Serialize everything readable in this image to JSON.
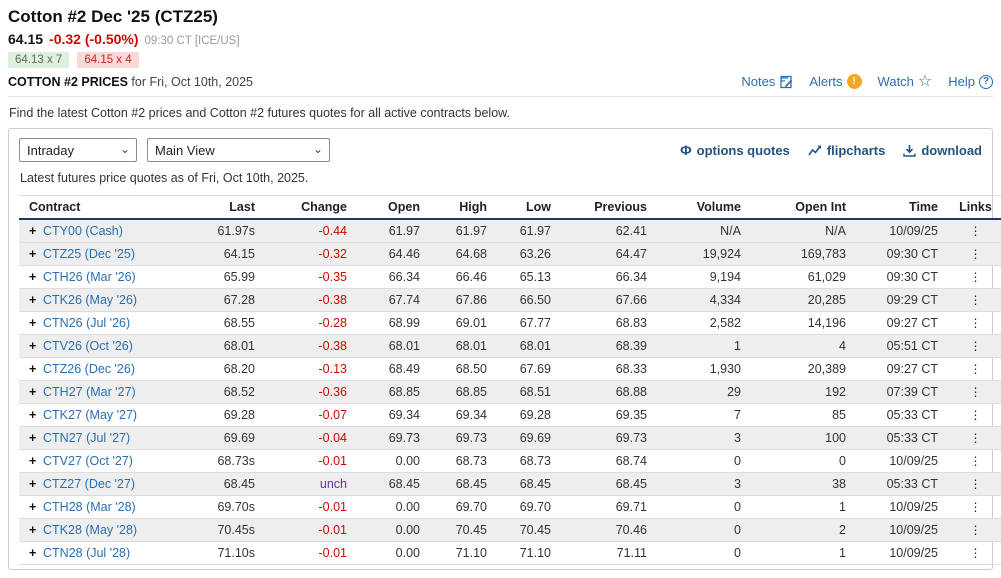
{
  "header": {
    "title": "Cotton #2 Dec '25 (CTZ25)",
    "last_price": "64.15",
    "change": "-0.32 (-0.50%)",
    "quote_time": "09:30 CT [ICE/US]",
    "bid": "64.13 x 7",
    "ask": "64.15 x 4",
    "prices_label": "COTTON #2 PRICES",
    "prices_for": "for Fri, Oct 10th, 2025",
    "notes_label": "Notes",
    "alerts_label": "Alerts",
    "watch_label": "Watch",
    "help_label": "Help"
  },
  "intro_text": "Find the latest Cotton #2 prices and Cotton #2 futures quotes for all active contracts below.",
  "toolbar": {
    "view_select_value": "Intraday",
    "layout_select_value": "Main View",
    "options_quotes_label": "options quotes",
    "flipcharts_label": "flipcharts",
    "download_label": "download"
  },
  "quotes_note": "Latest futures price quotes as of Fri, Oct 10th, 2025.",
  "table": {
    "columns": [
      "Contract",
      "Last",
      "Change",
      "Open",
      "High",
      "Low",
      "Previous",
      "Volume",
      "Open Int",
      "Time",
      "Links"
    ],
    "rows": [
      {
        "contract": "CTY00 (Cash)",
        "last": "61.97s",
        "change": "-0.44",
        "change_type": "down",
        "open": "61.97",
        "high": "61.97",
        "low": "61.97",
        "previous": "62.41",
        "volume": "N/A",
        "open_int": "N/A",
        "time": "10/09/25"
      },
      {
        "contract": "CTZ25 (Dec '25)",
        "last": "64.15",
        "change": "-0.32",
        "change_type": "down",
        "open": "64.46",
        "high": "64.68",
        "low": "63.26",
        "previous": "64.47",
        "volume": "19,924",
        "open_int": "169,783",
        "time": "09:30 CT"
      },
      {
        "contract": "CTH26 (Mar '26)",
        "last": "65.99",
        "change": "-0.35",
        "change_type": "down",
        "open": "66.34",
        "high": "66.46",
        "low": "65.13",
        "previous": "66.34",
        "volume": "9,194",
        "open_int": "61,029",
        "time": "09:30 CT"
      },
      {
        "contract": "CTK26 (May '26)",
        "last": "67.28",
        "change": "-0.38",
        "change_type": "down",
        "open": "67.74",
        "high": "67.86",
        "low": "66.50",
        "previous": "67.66",
        "volume": "4,334",
        "open_int": "20,285",
        "time": "09:29 CT"
      },
      {
        "contract": "CTN26 (Jul '26)",
        "last": "68.55",
        "change": "-0.28",
        "change_type": "down",
        "open": "68.99",
        "high": "69.01",
        "low": "67.77",
        "previous": "68.83",
        "volume": "2,582",
        "open_int": "14,196",
        "time": "09:27 CT"
      },
      {
        "contract": "CTV26 (Oct '26)",
        "last": "68.01",
        "change": "-0.38",
        "change_type": "down",
        "open": "68.01",
        "high": "68.01",
        "low": "68.01",
        "previous": "68.39",
        "volume": "1",
        "open_int": "4",
        "time": "05:51 CT"
      },
      {
        "contract": "CTZ26 (Dec '26)",
        "last": "68.20",
        "change": "-0.13",
        "change_type": "down",
        "open": "68.49",
        "high": "68.50",
        "low": "67.69",
        "previous": "68.33",
        "volume": "1,930",
        "open_int": "20,389",
        "time": "09:27 CT"
      },
      {
        "contract": "CTH27 (Mar '27)",
        "last": "68.52",
        "change": "-0.36",
        "change_type": "down",
        "open": "68.85",
        "high": "68.85",
        "low": "68.51",
        "previous": "68.88",
        "volume": "29",
        "open_int": "192",
        "time": "07:39 CT"
      },
      {
        "contract": "CTK27 (May '27)",
        "last": "69.28",
        "change": "-0.07",
        "change_type": "down",
        "open": "69.34",
        "high": "69.34",
        "low": "69.28",
        "previous": "69.35",
        "volume": "7",
        "open_int": "85",
        "time": "05:33 CT"
      },
      {
        "contract": "CTN27 (Jul '27)",
        "last": "69.69",
        "change": "-0.04",
        "change_type": "down",
        "open": "69.73",
        "high": "69.73",
        "low": "69.69",
        "previous": "69.73",
        "volume": "3",
        "open_int": "100",
        "time": "05:33 CT"
      },
      {
        "contract": "CTV27 (Oct '27)",
        "last": "68.73s",
        "change": "-0.01",
        "change_type": "down",
        "open": "0.00",
        "high": "68.73",
        "low": "68.73",
        "previous": "68.74",
        "volume": "0",
        "open_int": "0",
        "time": "10/09/25"
      },
      {
        "contract": "CTZ27 (Dec '27)",
        "last": "68.45",
        "change": "unch",
        "change_type": "unch",
        "open": "68.45",
        "high": "68.45",
        "low": "68.45",
        "previous": "68.45",
        "volume": "3",
        "open_int": "38",
        "time": "05:33 CT"
      },
      {
        "contract": "CTH28 (Mar '28)",
        "last": "69.70s",
        "change": "-0.01",
        "change_type": "down",
        "open": "0.00",
        "high": "69.70",
        "low": "69.70",
        "previous": "69.71",
        "volume": "0",
        "open_int": "1",
        "time": "10/09/25"
      },
      {
        "contract": "CTK28 (May '28)",
        "last": "70.45s",
        "change": "-0.01",
        "change_type": "down",
        "open": "0.00",
        "high": "70.45",
        "low": "70.45",
        "previous": "70.46",
        "volume": "0",
        "open_int": "2",
        "time": "10/09/25"
      },
      {
        "contract": "CTN28 (Jul '28)",
        "last": "71.10s",
        "change": "-0.01",
        "change_type": "down",
        "open": "0.00",
        "high": "71.10",
        "low": "71.10",
        "previous": "71.11",
        "volume": "0",
        "open_int": "1",
        "time": "10/09/25"
      }
    ]
  },
  "colors": {
    "negative": "#cc0a00",
    "unchanged": "#6f2da8",
    "link_blue": "#2a6fb0",
    "toolbar_navy": "#25527e",
    "bid_bg": "#ddefdd",
    "ask_bg": "#f9d8d8",
    "row_shade": "#eeeeee",
    "header_rule": "#1f3b63",
    "alert_orange": "#f5a623"
  }
}
